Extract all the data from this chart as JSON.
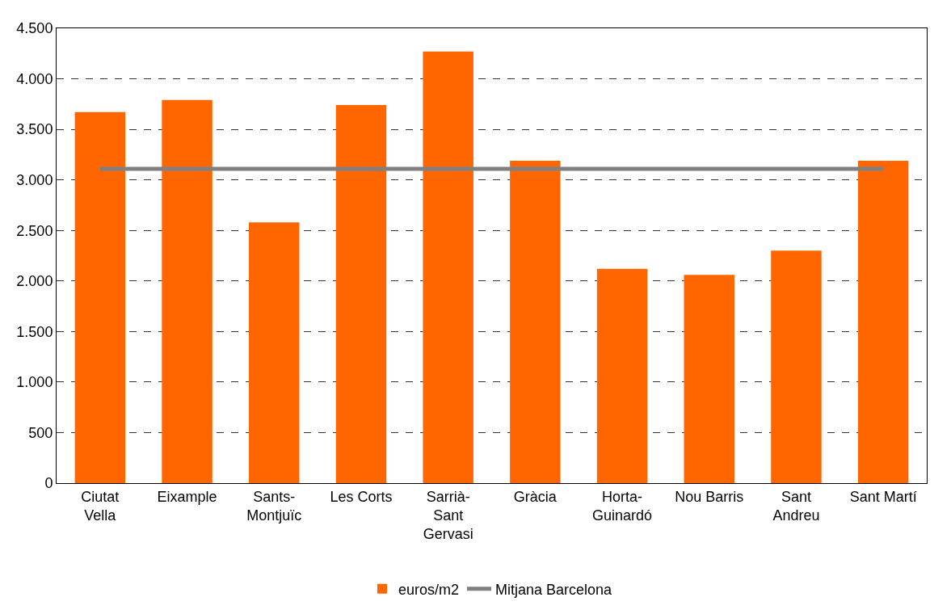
{
  "chart_data": {
    "type": "bar",
    "categories": [
      "Ciutat Vella",
      "Eixample",
      "Sants-Montjuïc",
      "Les Corts",
      "Sarrià-Sant Gervasi",
      "Gràcia",
      "Horta-Guinardó",
      "Nou Barris",
      "Sant Andreu",
      "Sant Martí"
    ],
    "series": [
      {
        "name": "euros/m2",
        "color": "#ff6600",
        "values": [
          3670,
          3790,
          2580,
          3740,
          4270,
          3190,
          2120,
          2060,
          2300,
          3190
        ]
      },
      {
        "name": "Mitjana Barcelona",
        "type": "line",
        "color": "#808080",
        "marker": "none",
        "line_style": "solid",
        "values": [
          3110,
          3110,
          3110,
          3110,
          3110,
          3110,
          3110,
          3110,
          3110,
          3110
        ]
      }
    ],
    "ylim": [
      0,
      4500
    ],
    "yticks": [
      {
        "value": 0,
        "label": "0"
      },
      {
        "value": 500,
        "label": "500"
      },
      {
        "value": 1000,
        "label": "1.000"
      },
      {
        "value": 1500,
        "label": "1.500"
      },
      {
        "value": 2000,
        "label": "2.000"
      },
      {
        "value": 2500,
        "label": "2.500"
      },
      {
        "value": 3000,
        "label": "3.000"
      },
      {
        "value": 3500,
        "label": "3.500"
      },
      {
        "value": 4000,
        "label": "4.000"
      },
      {
        "value": 4500,
        "label": "4.500"
      }
    ],
    "grid": "y",
    "legend": "bottom"
  }
}
